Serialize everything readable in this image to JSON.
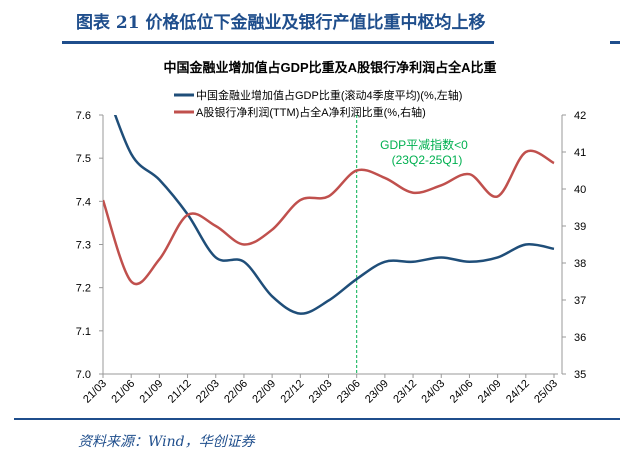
{
  "header": {
    "figure_title": "图表 21  价格低位下金融业及银行产值比重中枢均上移",
    "source": "资料来源：Wind，华创证券"
  },
  "chart_data": {
    "type": "line",
    "title": "中国金融业增加值占GDP比重及A股银行净利润占全A比重",
    "categories": [
      "21/03",
      "21/06",
      "21/09",
      "21/12",
      "22/03",
      "22/06",
      "22/09",
      "22/12",
      "23/03",
      "23/06",
      "23/09",
      "23/12",
      "24/03",
      "24/06",
      "24/09",
      "24/12",
      "25/03"
    ],
    "series": [
      {
        "name": "中国金融业增加值占GDP比重(滚动4季度平均)(%,左轴)",
        "axis": "left",
        "color": "#1f4e79",
        "values": [
          7.68,
          7.51,
          7.45,
          7.37,
          7.27,
          7.26,
          7.18,
          7.14,
          7.17,
          7.22,
          7.26,
          7.26,
          7.27,
          7.26,
          7.27,
          7.3,
          7.29
        ]
      },
      {
        "name": "A股银行净利润(TTM)占全A净利润比重(%,右轴)",
        "axis": "right",
        "color": "#c0504d",
        "values": [
          39.7,
          37.5,
          38.1,
          39.3,
          39.0,
          38.5,
          38.9,
          39.7,
          39.8,
          40.5,
          40.3,
          39.9,
          40.1,
          40.4,
          39.8,
          41.0,
          40.7
        ]
      }
    ],
    "left_axis": {
      "ylim": [
        7.0,
        7.6
      ],
      "ticks": [
        "7.0",
        "7.1",
        "7.2",
        "7.3",
        "7.4",
        "7.5",
        "7.6"
      ]
    },
    "right_axis": {
      "ylim": [
        35,
        42
      ],
      "ticks": [
        "35",
        "36",
        "37",
        "38",
        "39",
        "40",
        "41",
        "42"
      ]
    },
    "annotation": {
      "category": "23/06",
      "label_line1": "GDP平减指数<0",
      "label_line2": "(23Q2-25Q1)",
      "color": "#00b050"
    },
    "legend": "top-center",
    "grid": false
  }
}
